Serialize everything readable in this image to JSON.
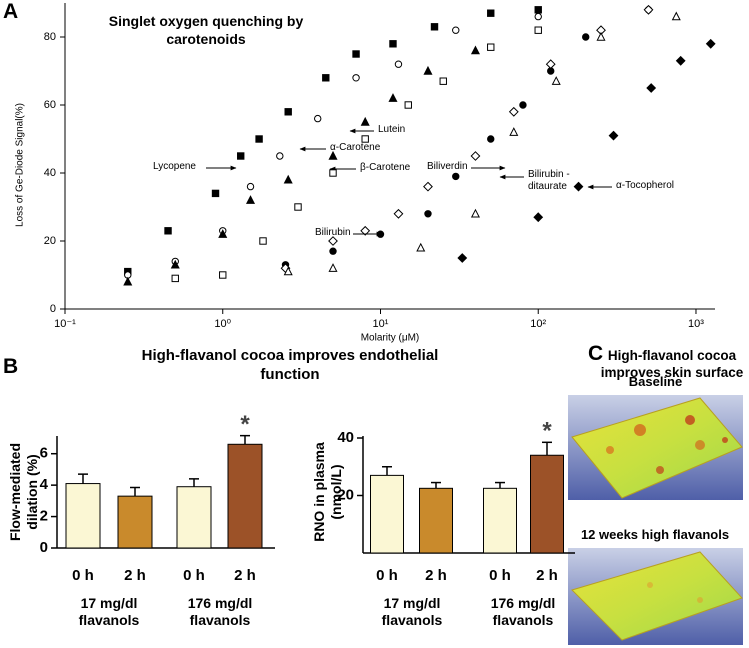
{
  "chart_data": [
    {
      "panel": "A",
      "type": "line",
      "title": "Singlet oxygen quenching by carotenoids",
      "xlabel": "Molarity (μM)",
      "ylabel": "Loss of Ge-Diode Signal(%)",
      "xscale": "log",
      "xlim": [
        0.1,
        1320
      ],
      "ylim": [
        0,
        90
      ],
      "xticks": [
        {
          "value": 0.1,
          "label": "10⁻¹"
        },
        {
          "value": 1,
          "label": "10⁰"
        },
        {
          "value": 10,
          "label": "10¹"
        },
        {
          "value": 100,
          "label": "10²"
        },
        {
          "value": 1000,
          "label": "10³"
        }
      ],
      "yticks": [
        0,
        20,
        40,
        60,
        80
      ],
      "series": [
        {
          "name": "Lycopene",
          "color": "#000000",
          "marker": "square",
          "filled": true,
          "x": [
            0.25,
            0.45,
            0.9,
            1.3,
            1.7,
            2.6,
            4.5,
            7,
            12,
            22,
            50,
            100
          ],
          "values": [
            11,
            23,
            34,
            45,
            50,
            58,
            68,
            75,
            78,
            83,
            87,
            88
          ]
        },
        {
          "name": "β-Carotene",
          "color": "#000000",
          "marker": "circle",
          "filled": false,
          "x": [
            0.25,
            0.5,
            1,
            1.5,
            2.3,
            4,
            7,
            13,
            30,
            100
          ],
          "values": [
            10,
            14,
            23,
            36,
            45,
            56,
            68,
            72,
            82,
            86
          ]
        },
        {
          "name": "α-Carotene",
          "color": "#000000",
          "marker": "triangle",
          "filled": true,
          "x": [
            0.25,
            0.5,
            1,
            1.5,
            2.6,
            5,
            8,
            12,
            20,
            40
          ],
          "values": [
            8,
            13,
            22,
            32,
            38,
            45,
            55,
            62,
            70,
            76
          ]
        },
        {
          "name": "Lutein",
          "color": "#000000",
          "marker": "square",
          "filled": false,
          "x": [
            0.5,
            1,
            1.8,
            3,
            5,
            8,
            15,
            25,
            50,
            100
          ],
          "values": [
            9,
            10,
            20,
            30,
            40,
            50,
            60,
            67,
            77,
            82
          ]
        },
        {
          "name": "Biliverdin",
          "color": "#000000",
          "marker": "circle",
          "filled": true,
          "x": [
            2.5,
            5,
            10,
            20,
            30,
            50,
            80,
            120,
            200,
            500
          ],
          "values": [
            13,
            17,
            22,
            28,
            39,
            50,
            60,
            70,
            80,
            88
          ]
        },
        {
          "name": "Bilirubin",
          "color": "#000000",
          "marker": "diamond",
          "filled": false,
          "x": [
            2.5,
            5,
            8,
            13,
            20,
            40,
            70,
            120,
            250,
            500
          ],
          "values": [
            12,
            20,
            23,
            28,
            36,
            45,
            58,
            72,
            82,
            88
          ]
        },
        {
          "name": "Bilirubin - ditaurate",
          "color": "#000000",
          "marker": "triangle",
          "filled": false,
          "x": [
            2.6,
            5,
            18,
            40,
            70,
            130,
            250,
            750
          ],
          "values": [
            11,
            12,
            18,
            28,
            52,
            67,
            80,
            86
          ]
        },
        {
          "name": "α-Tocopherol",
          "color": "#000000",
          "marker": "diamond",
          "filled": true,
          "x": [
            33,
            100,
            180,
            300,
            520,
            800,
            1240
          ],
          "values": [
            15,
            27,
            36,
            51,
            65,
            73,
            78
          ]
        }
      ]
    },
    {
      "panel": "B",
      "type": "bar",
      "title": "High-flavanol cocoa improves endothelial function",
      "ylabel": "Flow-mediated dilation (%)",
      "categories": [
        "0 h",
        "2 h",
        "0 h",
        "2 h"
      ],
      "groups": [
        "17 mg/dl flavanols",
        "176 mg/dl flavanols"
      ],
      "values": [
        4.1,
        3.3,
        3.9,
        6.6
      ],
      "errors": [
        0.6,
        0.55,
        0.5,
        0.55
      ],
      "colors": [
        "#fbf7d4",
        "#c98a2c",
        "#fbf7d4",
        "#9c5228"
      ],
      "ylim": [
        0,
        7
      ],
      "yticks": [
        0,
        2,
        4,
        6
      ],
      "annotation": "*"
    },
    {
      "type": "bar",
      "ylabel": "RNO in plasma (nmol/L)",
      "categories": [
        "0 h",
        "2 h",
        "0 h",
        "2 h"
      ],
      "groups": [
        "17 mg/dl flavanols",
        "176 mg/dl flavanols"
      ],
      "values": [
        27,
        22.5,
        22.5,
        34
      ],
      "errors": [
        3,
        2,
        2,
        4.5
      ],
      "colors": [
        "#fbf7d4",
        "#c98a2c",
        "#fbf7d4",
        "#9c5228"
      ],
      "ylim": [
        0,
        40
      ],
      "yticks": [
        20,
        40
      ],
      "annotation": "*"
    }
  ],
  "images_panel": {
    "panel": "C",
    "title": "High-flavanol cocoa improves skin surface",
    "captions": [
      "Baseline",
      "12 weeks high flavanols"
    ]
  }
}
